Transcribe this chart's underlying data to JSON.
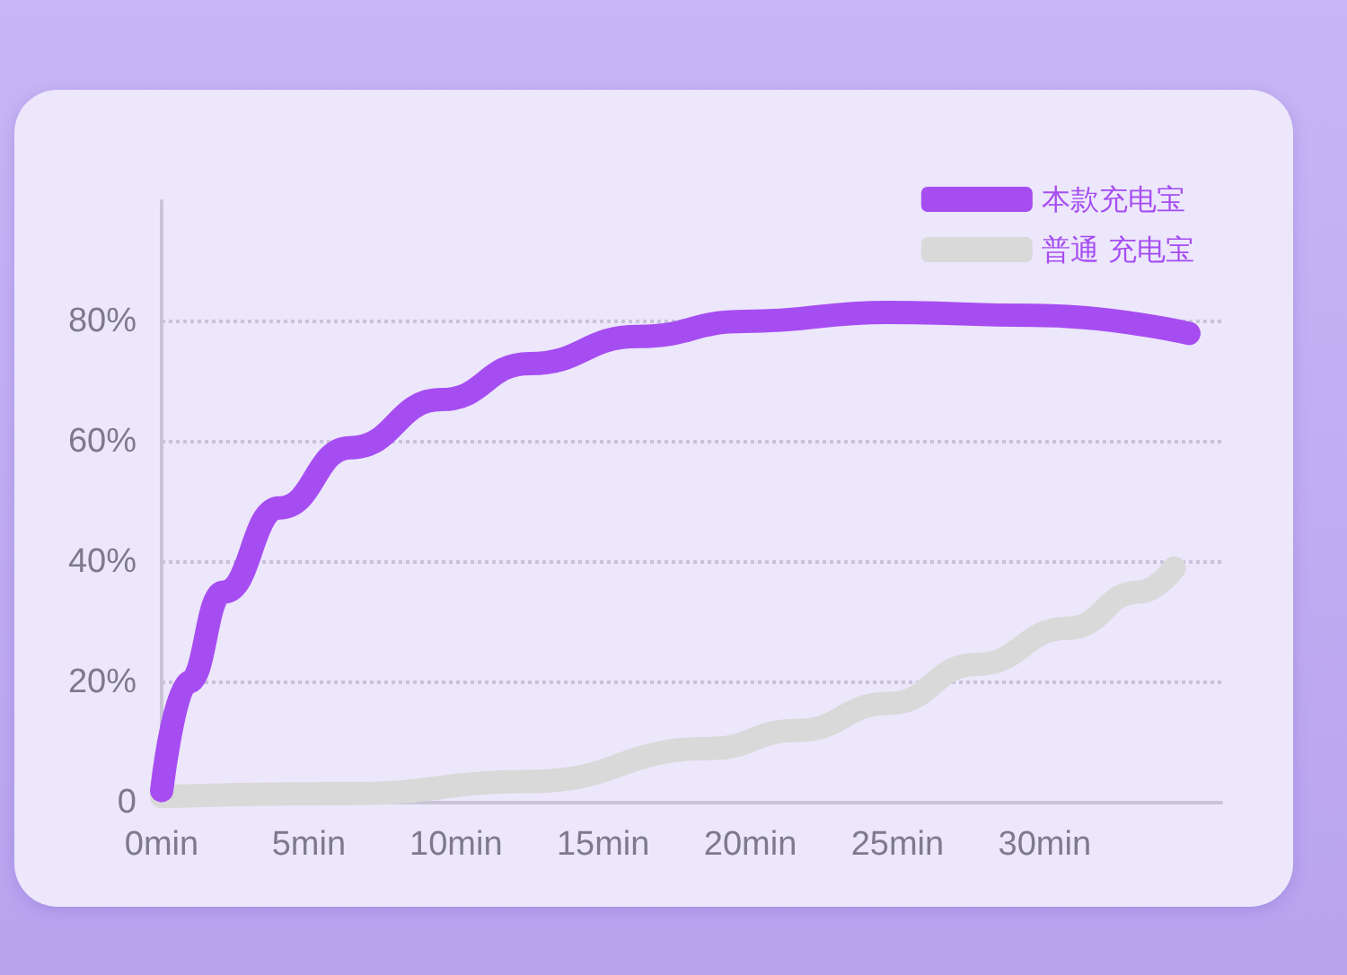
{
  "chart_data": {
    "type": "line",
    "legend": "top right",
    "grid": "y",
    "marker": "none",
    "line_style": "solid",
    "xlim": [
      0,
      36
    ],
    "ylim": [
      0,
      100
    ],
    "xticks": [
      {
        "value": 0,
        "label": "0min"
      },
      {
        "value": 5,
        "label": "5min"
      },
      {
        "value": 10,
        "label": "10min"
      },
      {
        "value": 15,
        "label": "15min"
      },
      {
        "value": 20,
        "label": "20min"
      },
      {
        "value": 25,
        "label": "25min"
      },
      {
        "value": 30,
        "label": "30min"
      }
    ],
    "yticks": [
      {
        "value": 0,
        "label": "0"
      },
      {
        "value": 20,
        "label": "20%"
      },
      {
        "value": 40,
        "label": "40%"
      },
      {
        "value": 60,
        "label": "60%"
      },
      {
        "value": 80,
        "label": "80%"
      }
    ],
    "series": [
      {
        "name": "本款充电宝",
        "color": "#a64df2",
        "x": [
          0,
          0.9,
          2.1,
          4,
          6.4,
          9.5,
          12.5,
          16.2,
          19.8,
          24.7,
          29.6,
          34.9
        ],
        "values": [
          2,
          20,
          35,
          49,
          59,
          67,
          73,
          77.5,
          80,
          81.5,
          81,
          78
        ]
      },
      {
        "name": "普通 充电宝",
        "color": "#d9d9d9",
        "x": [
          0,
          6.4,
          12.5,
          18.6,
          21.6,
          24.7,
          27.7,
          30.8,
          33.2,
          34.4
        ],
        "values": [
          1,
          1.5,
          3.5,
          9,
          12,
          16.5,
          23,
          29,
          35,
          39
        ]
      }
    ]
  }
}
